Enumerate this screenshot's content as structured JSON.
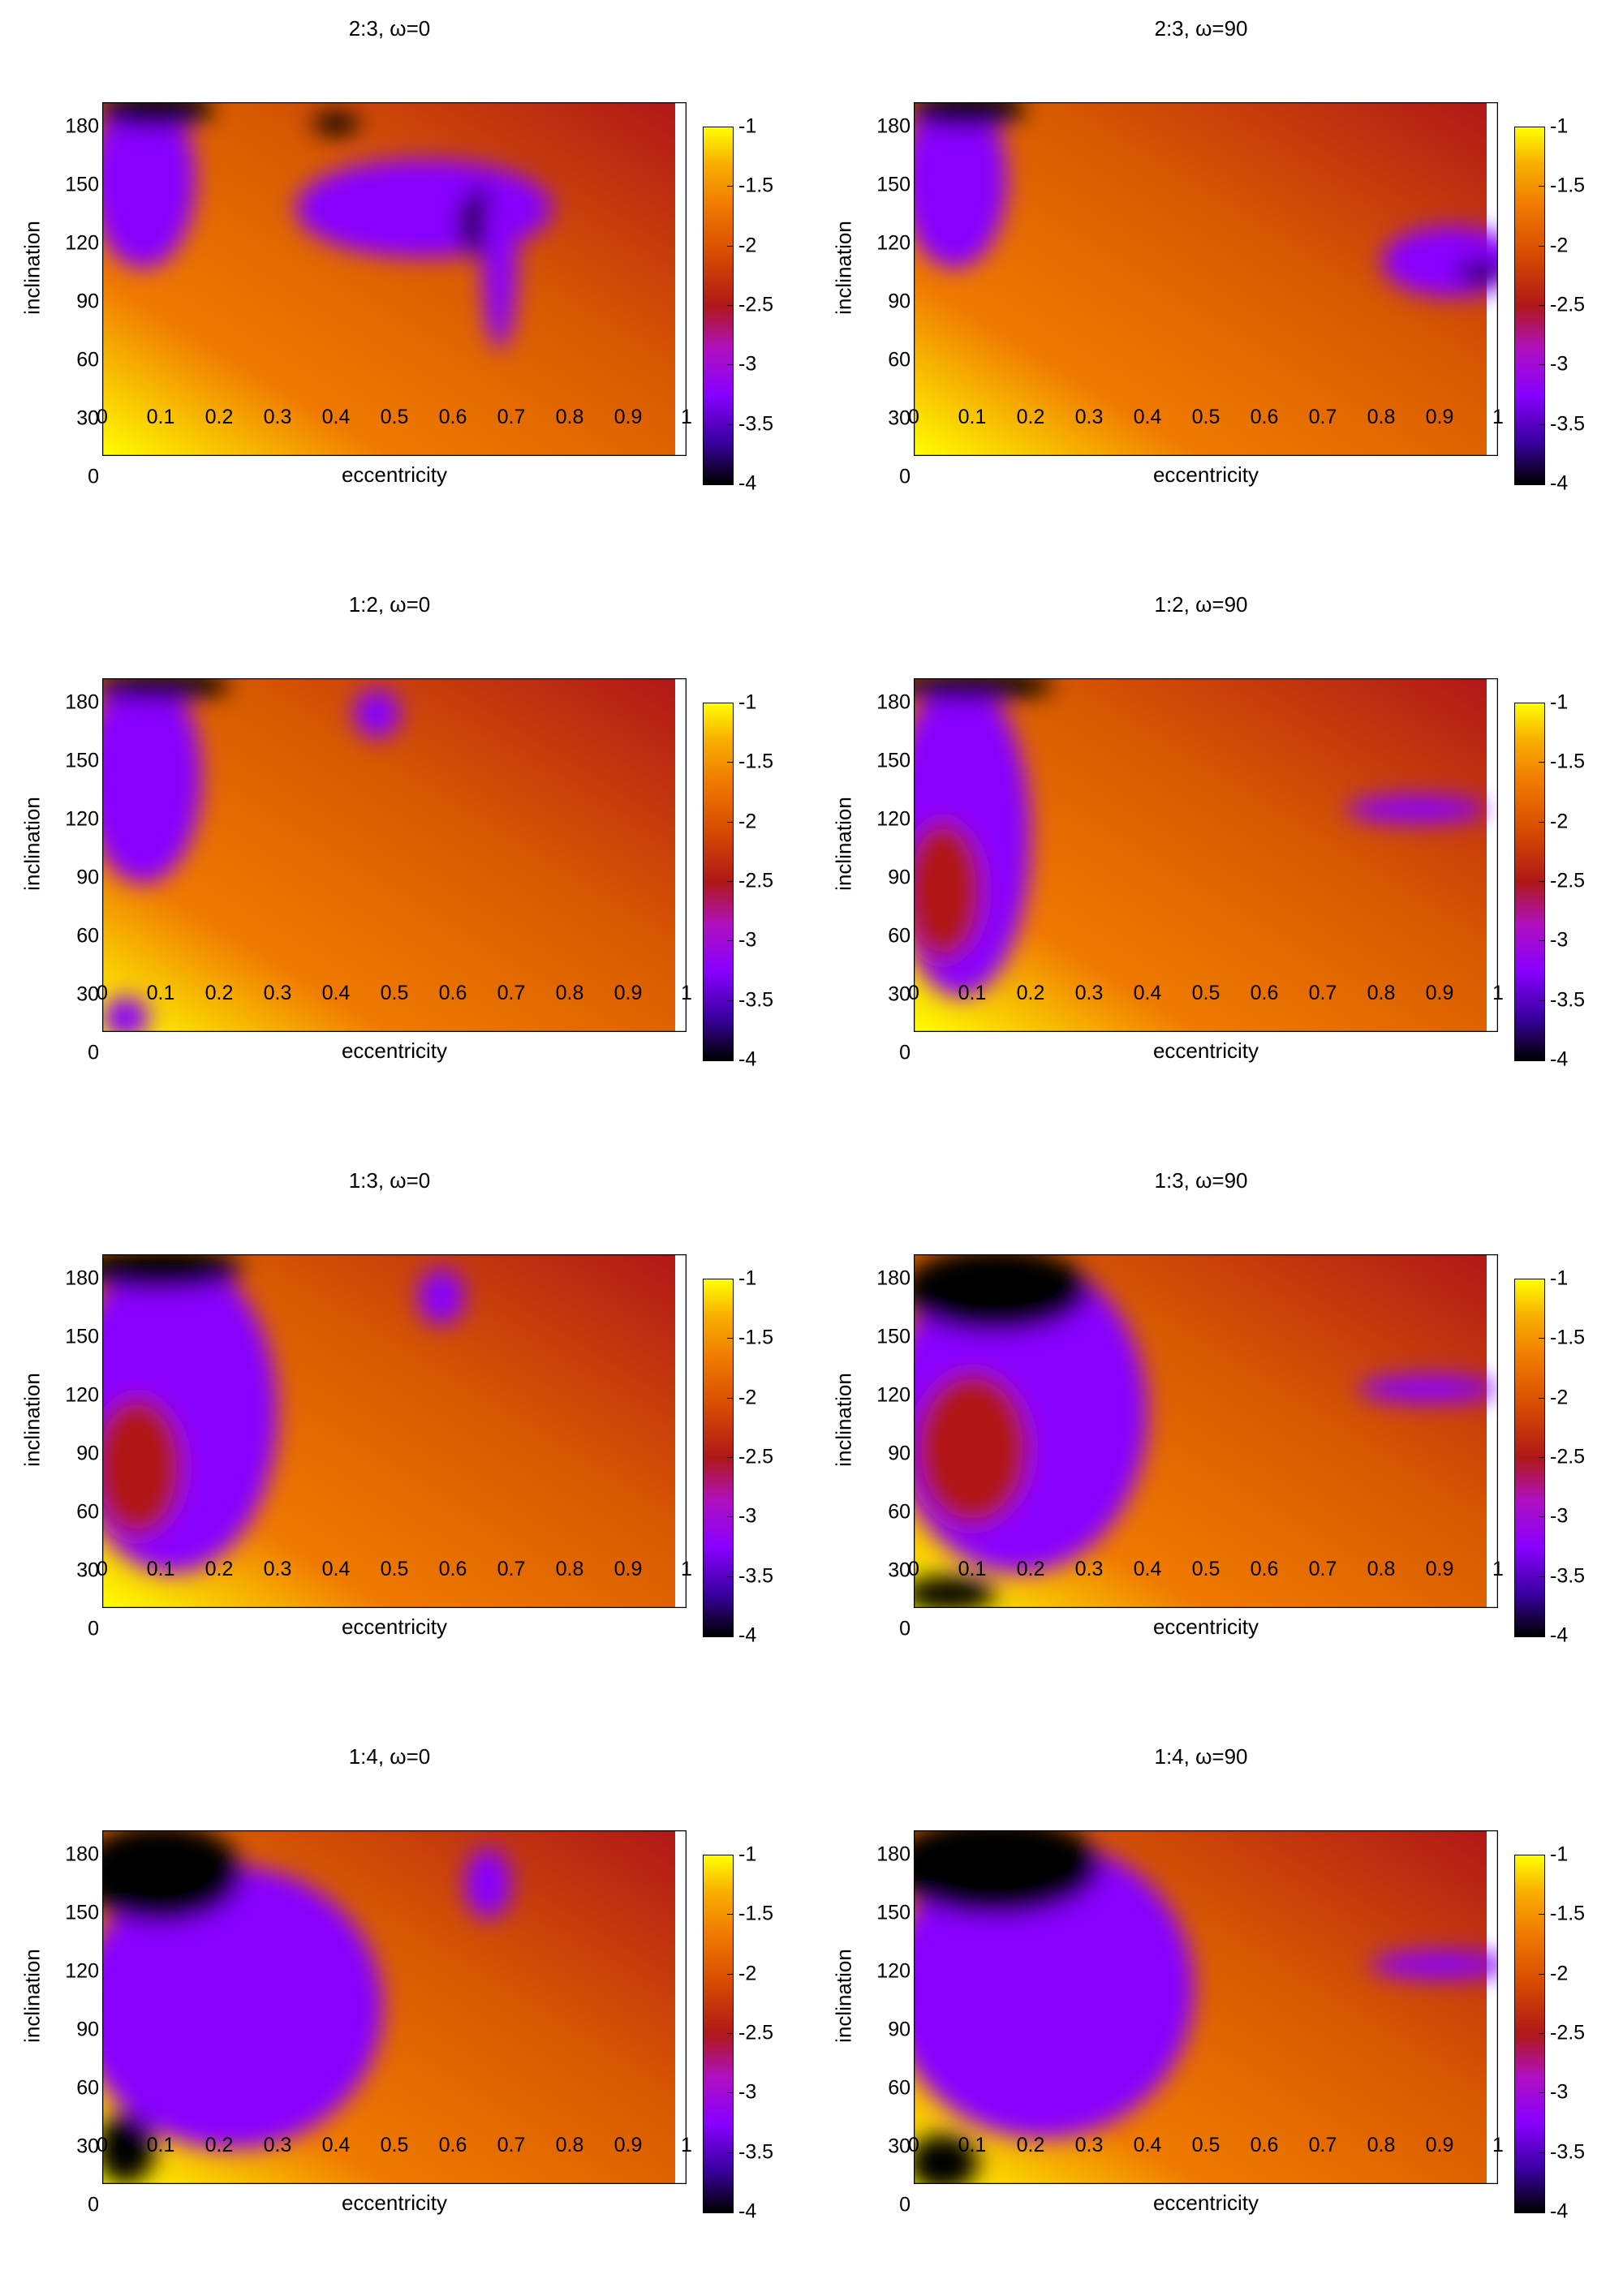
{
  "colorbar": {
    "ticks": [
      "-1",
      "-1.5",
      "-2",
      "-2.5",
      "-3",
      "-3.5",
      "-4"
    ]
  },
  "x_ticks": [
    "0",
    "0.1",
    "0.2",
    "0.3",
    "0.4",
    "0.5",
    "0.6",
    "0.7",
    "0.8",
    "0.9",
    "1"
  ],
  "y_ticks": [
    "180",
    "150",
    "120",
    "90",
    "60",
    "30",
    "0"
  ],
  "colors": {
    "low": "#000000",
    "violet": "#8800ff",
    "red": "#b01818",
    "orange": "#f07a00",
    "high": "#ffff00"
  },
  "chart_data": [
    {
      "type": "heatmap",
      "title": "2:3, ω=0",
      "xlabel": "eccentricity",
      "ylabel": "inclination",
      "xlim": [
        0,
        1
      ],
      "ylim": [
        0,
        180
      ],
      "zlim": [
        -4,
        -1
      ]
    },
    {
      "type": "heatmap",
      "title": "2:3, ω=90",
      "xlabel": "eccentricity",
      "ylabel": "inclination",
      "xlim": [
        0,
        1
      ],
      "ylim": [
        0,
        180
      ],
      "zlim": [
        -4,
        -1
      ]
    },
    {
      "type": "heatmap",
      "title": "1:2, ω=0",
      "xlabel": "eccentricity",
      "ylabel": "inclination",
      "xlim": [
        0,
        1
      ],
      "ylim": [
        0,
        180
      ],
      "zlim": [
        -4,
        -1
      ]
    },
    {
      "type": "heatmap",
      "title": "1:2, ω=90",
      "xlabel": "eccentricity",
      "ylabel": "inclination",
      "xlim": [
        0,
        1
      ],
      "ylim": [
        0,
        180
      ],
      "zlim": [
        -4,
        -1
      ]
    },
    {
      "type": "heatmap",
      "title": "1:3, ω=0",
      "xlabel": "eccentricity",
      "ylabel": "inclination",
      "xlim": [
        0,
        1
      ],
      "ylim": [
        0,
        180
      ],
      "zlim": [
        -4,
        -1
      ]
    },
    {
      "type": "heatmap",
      "title": "1:3, ω=90",
      "xlabel": "eccentricity",
      "ylabel": "inclination",
      "xlim": [
        0,
        1
      ],
      "ylim": [
        0,
        180
      ],
      "zlim": [
        -4,
        -1
      ]
    },
    {
      "type": "heatmap",
      "title": "1:4, ω=0",
      "xlabel": "eccentricity",
      "ylabel": "inclination",
      "xlim": [
        0,
        1
      ],
      "ylim": [
        0,
        180
      ],
      "zlim": [
        -4,
        -1
      ]
    },
    {
      "type": "heatmap",
      "title": "1:4, ω=90",
      "xlabel": "eccentricity",
      "ylabel": "inclination",
      "xlim": [
        0,
        1
      ],
      "ylim": [
        0,
        180
      ],
      "zlim": [
        -4,
        -1
      ]
    }
  ]
}
